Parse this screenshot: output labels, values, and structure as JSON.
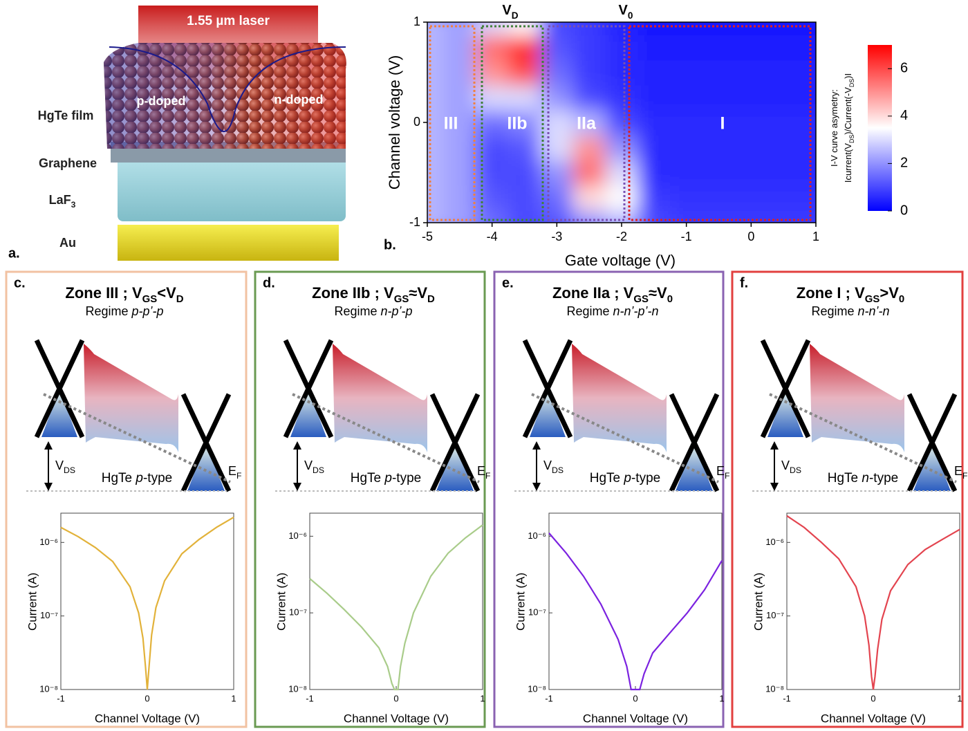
{
  "panel_a": {
    "letter": "a.",
    "laser": "1.55 µm laser",
    "p_doped": "p-doped",
    "n_doped": "n-doped",
    "layers": [
      [
        "HgTe film"
      ],
      [
        "Graphene"
      ],
      [
        "LaF",
        "3"
      ],
      [
        "Au"
      ]
    ]
  },
  "heatmap_panel": {
    "letter": "b.",
    "top_labels": [
      [
        "V",
        "D"
      ],
      [
        "V",
        "0"
      ]
    ],
    "zones": [
      "III",
      "IIb",
      "IIa",
      "I"
    ],
    "colorbar_title": [
      [
        "I-V curve asymetry:"
      ],
      [
        "Icurrent(V",
        "DS",
        ")/Current(-V",
        "DS",
        ")I"
      ]
    ]
  },
  "panels": [
    {
      "letter": "c.",
      "title": [
        "Zone III ; V",
        "GS",
        "<V",
        "D"
      ],
      "regime": [
        "Regime ",
        "p-p’-p"
      ],
      "vds": [
        "V",
        "DS"
      ],
      "hgte": [
        "HgTe ",
        "p",
        "-type"
      ],
      "ef": [
        "E",
        "F"
      ]
    },
    {
      "letter": "d.",
      "title": [
        "Zone IIb ; V",
        "GS",
        "≈V",
        "D"
      ],
      "regime": [
        "Regime ",
        "n-p’-p"
      ],
      "vds": [
        "V",
        "DS"
      ],
      "hgte": [
        "HgTe ",
        "p",
        "-type"
      ],
      "ef": [
        "E",
        "F"
      ]
    },
    {
      "letter": "e.",
      "title": [
        "Zone IIa ; V",
        "GS",
        "≈V",
        "0"
      ],
      "regime": [
        "Regime ",
        "n-n’-p’-n"
      ],
      "vds": [
        "V",
        "DS"
      ],
      "hgte": [
        "HgTe ",
        "p",
        "-type"
      ],
      "ef": [
        "E",
        "F"
      ]
    },
    {
      "letter": "f.",
      "title": [
        "Zone I ;  V",
        "GS",
        ">V",
        "0"
      ],
      "regime": [
        "Regime ",
        "n-n’-n"
      ],
      "vds": [
        "V",
        "DS"
      ],
      "hgte": [
        "HgTe ",
        "n",
        "-type"
      ],
      "ef": [
        "E",
        "F"
      ]
    }
  ],
  "chart_data": [
    {
      "type": "heatmap",
      "xlabel": "Gate voltage (V)",
      "ylabel": "Channel voltage (V)",
      "x": [
        -5,
        -4.5,
        -4,
        -3.5,
        -3,
        -2.5,
        -2,
        -1.5,
        -1,
        -0.5,
        0,
        0.5,
        1
      ],
      "y": [
        -1,
        -0.75,
        -0.5,
        -0.25,
        0,
        0.25,
        0.5,
        0.75,
        1
      ],
      "z": [
        [
          2.5,
          2.2,
          1.5,
          1,
          1.2,
          2,
          2.5,
          1,
          0.8,
          0.8,
          0.8,
          0.8,
          0.8
        ],
        [
          2.5,
          2.2,
          1.2,
          1,
          1.5,
          4,
          3.5,
          0.8,
          0.7,
          0.7,
          0.7,
          0.7,
          0.7
        ],
        [
          2.5,
          2.2,
          1,
          1,
          2,
          5.5,
          3,
          0.6,
          0.6,
          0.6,
          0.6,
          0.6,
          0.6
        ],
        [
          2.5,
          2.2,
          1,
          1.2,
          3,
          5,
          2,
          0.6,
          0.6,
          0.6,
          0.6,
          0.6,
          0.6
        ],
        [
          2.5,
          2.2,
          1.5,
          1.8,
          3,
          2.5,
          1,
          0.6,
          0.6,
          0.6,
          0.6,
          0.6,
          0.6
        ],
        [
          2.5,
          2.2,
          3,
          3,
          2,
          1,
          0.7,
          0.5,
          0.5,
          0.5,
          0.5,
          0.5,
          0.5
        ],
        [
          2.5,
          2.2,
          5,
          6,
          1.5,
          0.8,
          0.6,
          0.5,
          0.5,
          0.5,
          0.5,
          0.5,
          0.5
        ],
        [
          2.5,
          2.2,
          5.5,
          6.5,
          1.2,
          0.8,
          0.6,
          0.4,
          0.4,
          0.4,
          0.4,
          0.4,
          0.4
        ],
        [
          2.5,
          2.2,
          3,
          3.5,
          1,
          0.8,
          0.5,
          0.3,
          0.3,
          0.3,
          0.3,
          0.3,
          0.3
        ]
      ],
      "xlim": [
        -5,
        1
      ],
      "ylim": [
        -1,
        1
      ],
      "xticks": [
        -5,
        -4,
        -3,
        -2,
        -1,
        0,
        1
      ],
      "yticks": [
        -1,
        0,
        1
      ],
      "clim": [
        0,
        7
      ],
      "cticks": [
        0,
        2,
        4,
        6
      ]
    },
    {
      "type": "line",
      "log_y": true,
      "xlabel": "Channel Voltage (V)",
      "ylabel": "Current (A)",
      "x": [
        -1,
        -0.8,
        -0.6,
        -0.4,
        -0.2,
        -0.1,
        -0.05,
        -0.02,
        0,
        0.02,
        0.05,
        0.1,
        0.2,
        0.4,
        0.6,
        0.8,
        1
      ],
      "series": [
        {
          "color": "#e2b23a",
          "values": [
            1.6e-06,
            1.2e-06,
            8.5e-07,
            5.5e-07,
            2.5e-07,
            1.1e-07,
            5e-08,
            2e-08,
            1e-08,
            2e-08,
            5.5e-08,
            1.3e-07,
            3e-07,
            7e-07,
            1.1e-06,
            1.6e-06,
            2.2e-06
          ]
        }
      ],
      "xlim": [
        -1,
        1
      ],
      "ylim": [
        1e-08,
        2.5e-06
      ],
      "xticks": [
        -1,
        0,
        1
      ],
      "yticks": [
        {
          "value": 1e-08,
          "label": "10⁻⁸"
        },
        {
          "value": 1e-07,
          "label": "10⁻⁷"
        },
        {
          "value": 1e-06,
          "label": "10⁻⁶"
        }
      ]
    },
    {
      "type": "line",
      "log_y": true,
      "xlabel": "Channel Voltage (V)",
      "ylabel": "Current (A)",
      "x": [
        -1,
        -0.8,
        -0.6,
        -0.4,
        -0.2,
        -0.1,
        -0.05,
        -0.02,
        0,
        0.02,
        0.05,
        0.1,
        0.2,
        0.4,
        0.6,
        0.8,
        1
      ],
      "series": [
        {
          "color": "#a9cc8a",
          "values": [
            2.8e-07,
            1.8e-07,
            1.1e-07,
            6.5e-08,
            3.5e-08,
            2e-08,
            1.2e-08,
            1e-08,
            1e-08,
            1e-08,
            2e-08,
            4e-08,
            1e-07,
            3e-07,
            6e-07,
            9.5e-07,
            1.4e-06
          ]
        }
      ],
      "xlim": [
        -1,
        1
      ],
      "ylim": [
        1e-08,
        2e-06
      ],
      "xticks": [
        -1,
        0,
        1
      ],
      "yticks": [
        {
          "value": 1e-08,
          "label": "10⁻⁸"
        },
        {
          "value": 1e-07,
          "label": "10⁻⁷"
        },
        {
          "value": 1e-06,
          "label": "10⁻⁶"
        }
      ]
    },
    {
      "type": "line",
      "log_y": true,
      "xlabel": "Channel Voltage (V)",
      "ylabel": "Current (A)",
      "x": [
        -1,
        -0.8,
        -0.6,
        -0.4,
        -0.2,
        -0.1,
        -0.05,
        -0.02,
        0,
        0.02,
        0.05,
        0.1,
        0.2,
        0.4,
        0.6,
        0.8,
        1
      ],
      "series": [
        {
          "color": "#7b22e0",
          "values": [
            1.1e-06,
            6e-07,
            3e-07,
            1.3e-07,
            4.5e-08,
            2e-08,
            1e-08,
            1e-08,
            1e-08,
            1e-08,
            1e-08,
            1.6e-08,
            3e-08,
            5.5e-08,
            1e-07,
            2e-07,
            4.8e-07
          ]
        }
      ],
      "xlim": [
        -1,
        1
      ],
      "ylim": [
        1e-08,
        2e-06
      ],
      "xticks": [
        -1,
        0,
        1
      ],
      "yticks": [
        {
          "value": 1e-08,
          "label": "10⁻⁸"
        },
        {
          "value": 1e-07,
          "label": "10⁻⁷"
        },
        {
          "value": 1e-06,
          "label": "10⁻⁶"
        }
      ]
    },
    {
      "type": "line",
      "log_y": true,
      "xlabel": "Channel Voltage (V)",
      "ylabel": "Current (A)",
      "x": [
        -1,
        -0.8,
        -0.6,
        -0.4,
        -0.2,
        -0.1,
        -0.05,
        -0.02,
        0,
        0.02,
        0.05,
        0.1,
        0.2,
        0.4,
        0.6,
        0.8,
        1
      ],
      "series": [
        {
          "color": "#e3444f",
          "values": [
            2.3e-06,
            1.6e-06,
            1e-06,
            6e-07,
            2.5e-07,
            1e-07,
            4e-08,
            1.5e-08,
            1e-08,
            1.5e-08,
            3.5e-08,
            9e-08,
            2.2e-07,
            5e-07,
            8e-07,
            1.1e-06,
            1.5e-06
          ]
        }
      ],
      "xlim": [
        -1,
        1
      ],
      "ylim": [
        1e-08,
        2.5e-06
      ],
      "xticks": [
        -1,
        0,
        1
      ],
      "yticks": [
        {
          "value": 1e-08,
          "label": "10⁻⁸"
        },
        {
          "value": 1e-07,
          "label": "10⁻⁷"
        },
        {
          "value": 1e-06,
          "label": "10⁻⁶"
        }
      ]
    }
  ]
}
